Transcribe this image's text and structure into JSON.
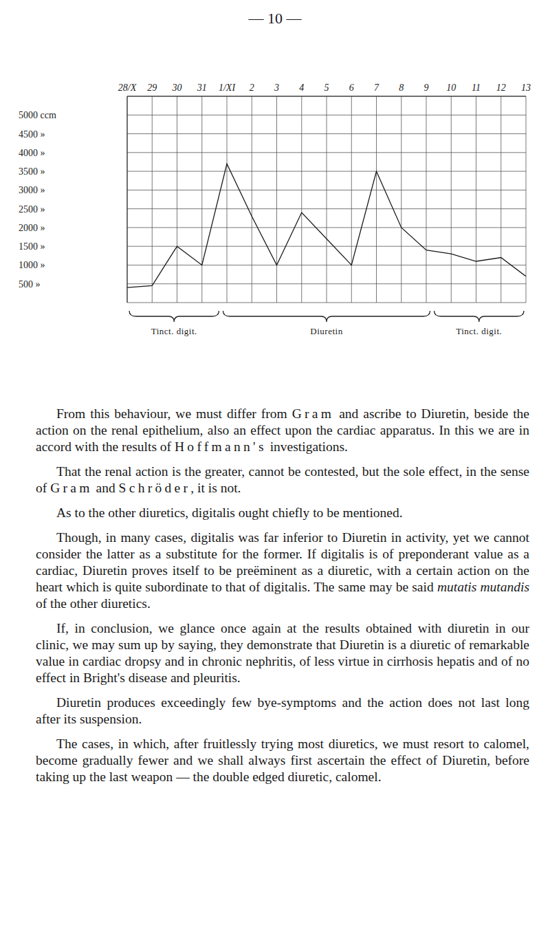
{
  "header": "— 10 —",
  "chart_data": {
    "type": "line",
    "categories": [
      "28/X",
      "29",
      "30",
      "31",
      "1/XI",
      "2",
      "3",
      "4",
      "5",
      "6",
      "7",
      "8",
      "9",
      "10",
      "11",
      "12",
      "13"
    ],
    "values": [
      400,
      450,
      1500,
      1000,
      3700,
      2300,
      1000,
      2400,
      1700,
      1000,
      3500,
      2000,
      1400,
      1300,
      1100,
      1200,
      700
    ],
    "color": "#1a1a1a",
    "marker": "none",
    "ylim": [
      0,
      5500
    ],
    "yticks": [
      {
        "value": 500,
        "label": "500 »"
      },
      {
        "value": 1000,
        "label": "1000 »"
      },
      {
        "value": 1500,
        "label": "1500 »"
      },
      {
        "value": 2000,
        "label": "2000 »"
      },
      {
        "value": 2500,
        "label": "2500 »"
      },
      {
        "value": 3000,
        "label": "3000 »"
      },
      {
        "value": 3500,
        "label": "3500 »"
      },
      {
        "value": 4000,
        "label": "4000 »"
      },
      {
        "value": 4500,
        "label": "4500 »"
      },
      {
        "value": 5000,
        "label": "5000 ccm"
      }
    ],
    "grid": true,
    "periods": [
      {
        "label": "Tinct. digit.",
        "from": "28/X",
        "to": "31"
      },
      {
        "label": "Diuretin",
        "from": "1/XI",
        "to": "9"
      },
      {
        "label": "Tinct. digit.",
        "from": "10",
        "to": "13"
      }
    ]
  },
  "paragraphs": [
    [
      {
        "text": "From this behaviour, we must differ from "
      },
      {
        "text": "Gram",
        "style": "spaced"
      },
      {
        "text": " and ascribe to Diuretin, beside the action on the renal epithelium, also an effect upon the cardiac apparatus. In this we are in accord with the results of "
      },
      {
        "text": "Hoffmann's",
        "style": "spaced"
      },
      {
        "text": " investigations."
      }
    ],
    [
      {
        "text": "That the renal action is the greater, cannot be contested, but the sole effect, in the sense of "
      },
      {
        "text": "Gram",
        "style": "spaced"
      },
      {
        "text": " and "
      },
      {
        "text": "Schröder",
        "style": "spaced"
      },
      {
        "text": ", it is not."
      }
    ],
    [
      {
        "text": "As to the other diuretics, digitalis ought chiefly to be mentioned."
      }
    ],
    [
      {
        "text": "Though, in many cases, digitalis was far inferior to Diuretin in activity, yet we cannot consider the latter as a substitute for the former. If digitalis is of preponderant value as a cardiac, Diuretin proves itself to be preëminent as a diuretic, with a certain action on the heart which is quite subordinate to that of digitalis. The same may be said "
      },
      {
        "text": "mutatis mutandis",
        "style": "italic"
      },
      {
        "text": " of the other diuretics."
      }
    ],
    [
      {
        "text": "If, in conclusion, we glance once again at the results obtained with diuretin in our clinic, we may sum up by saying, they demonstrate that Diuretin is a diuretic of remarkable value in cardiac dropsy and in chronic nephritis, of less virtue in cirrhosis hepatis and of no effect in Bright's disease and pleuritis."
      }
    ],
    [
      {
        "text": "Diuretin produces exceedingly few bye-symptoms and the action does not last long after its suspension."
      }
    ],
    [
      {
        "text": "The cases, in which, after fruitlessly trying most diuretics, we must resort to calomel, become gradually fewer and we shall always first ascertain the effect of Diuretin, before taking up the last weapon — the double edged diuretic, calomel."
      }
    ]
  ]
}
